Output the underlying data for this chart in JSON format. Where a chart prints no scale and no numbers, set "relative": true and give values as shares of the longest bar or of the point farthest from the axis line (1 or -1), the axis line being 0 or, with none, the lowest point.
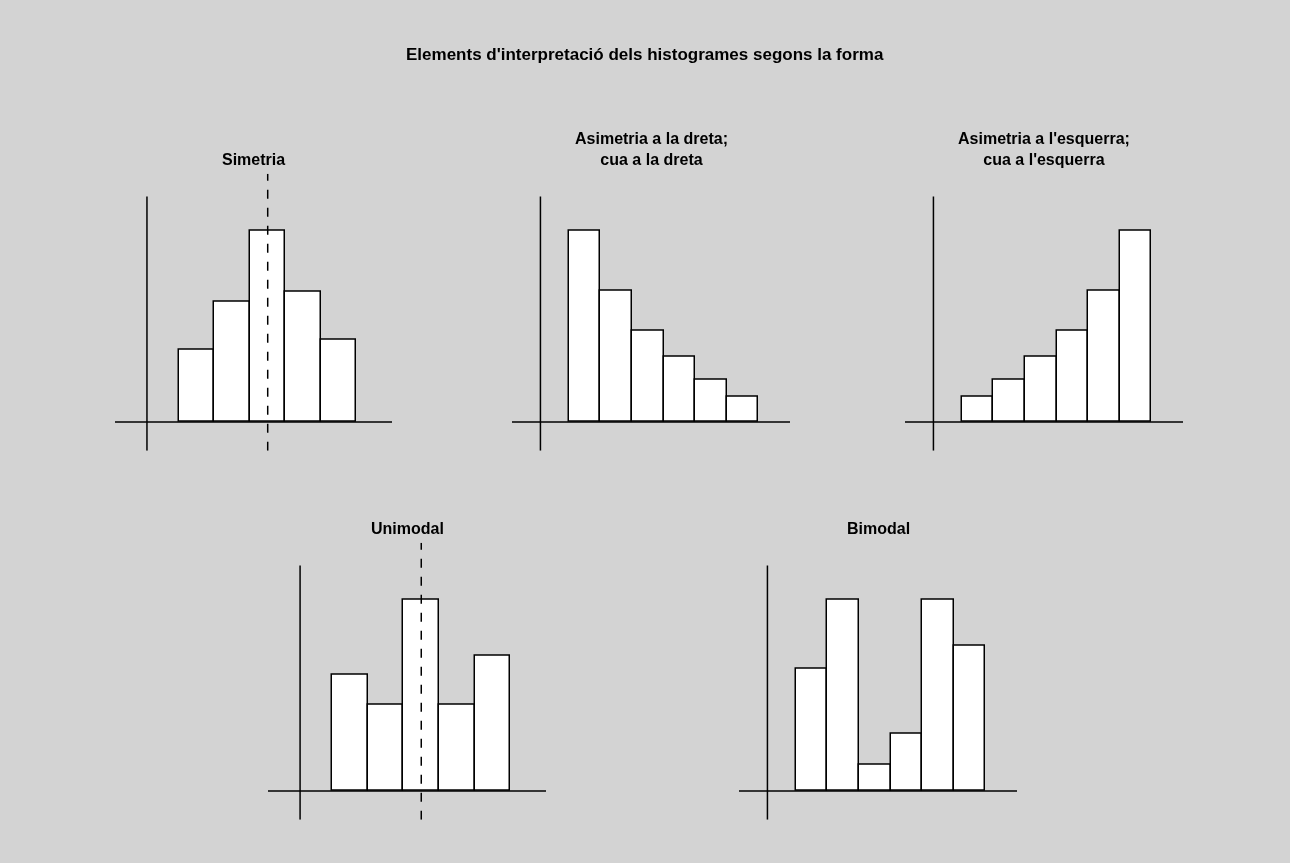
{
  "chart_data": [
    {
      "type": "other",
      "title": "Elements d'interpretació dels histogrames segons la forma"
    },
    {
      "type": "bar",
      "title": "Simetria",
      "relative": true,
      "categories": [
        null,
        null,
        null,
        null,
        null
      ],
      "values": [
        0.38,
        0.63,
        1,
        0.68,
        0.43
      ],
      "color": "#ffffff",
      "ref_lines": [
        {
          "axis": "x",
          "line_style": "dashed",
          "color": "#000000"
        }
      ]
    },
    {
      "type": "bar",
      "title": "Asimetria a la dreta;\ncua a la dreta",
      "relative": true,
      "categories": [
        null,
        null,
        null,
        null,
        null,
        null
      ],
      "values": [
        1,
        0.69,
        0.48,
        0.34,
        0.22,
        0.13
      ],
      "color": "#ffffff"
    },
    {
      "type": "bar",
      "title": "Asimetria a l'esquerra;\ncua a l'esquerra",
      "relative": true,
      "categories": [
        null,
        null,
        null,
        null,
        null,
        null
      ],
      "values": [
        0.13,
        0.22,
        0.34,
        0.48,
        0.69,
        1
      ],
      "color": "#ffffff"
    },
    {
      "type": "bar",
      "title": "Unimodal",
      "relative": true,
      "categories": [
        null,
        null,
        null,
        null,
        null
      ],
      "values": [
        0.61,
        0.45,
        1,
        0.45,
        0.71
      ],
      "color": "#ffffff",
      "ref_lines": [
        {
          "axis": "x",
          "line_style": "dashed",
          "color": "#000000"
        }
      ]
    },
    {
      "type": "bar",
      "title": "Bimodal",
      "relative": true,
      "categories": [
        null,
        null,
        null,
        null,
        null,
        null
      ],
      "values": [
        0.64,
        1,
        0.14,
        0.3,
        1,
        0.76
      ],
      "color": "#ffffff"
    }
  ]
}
